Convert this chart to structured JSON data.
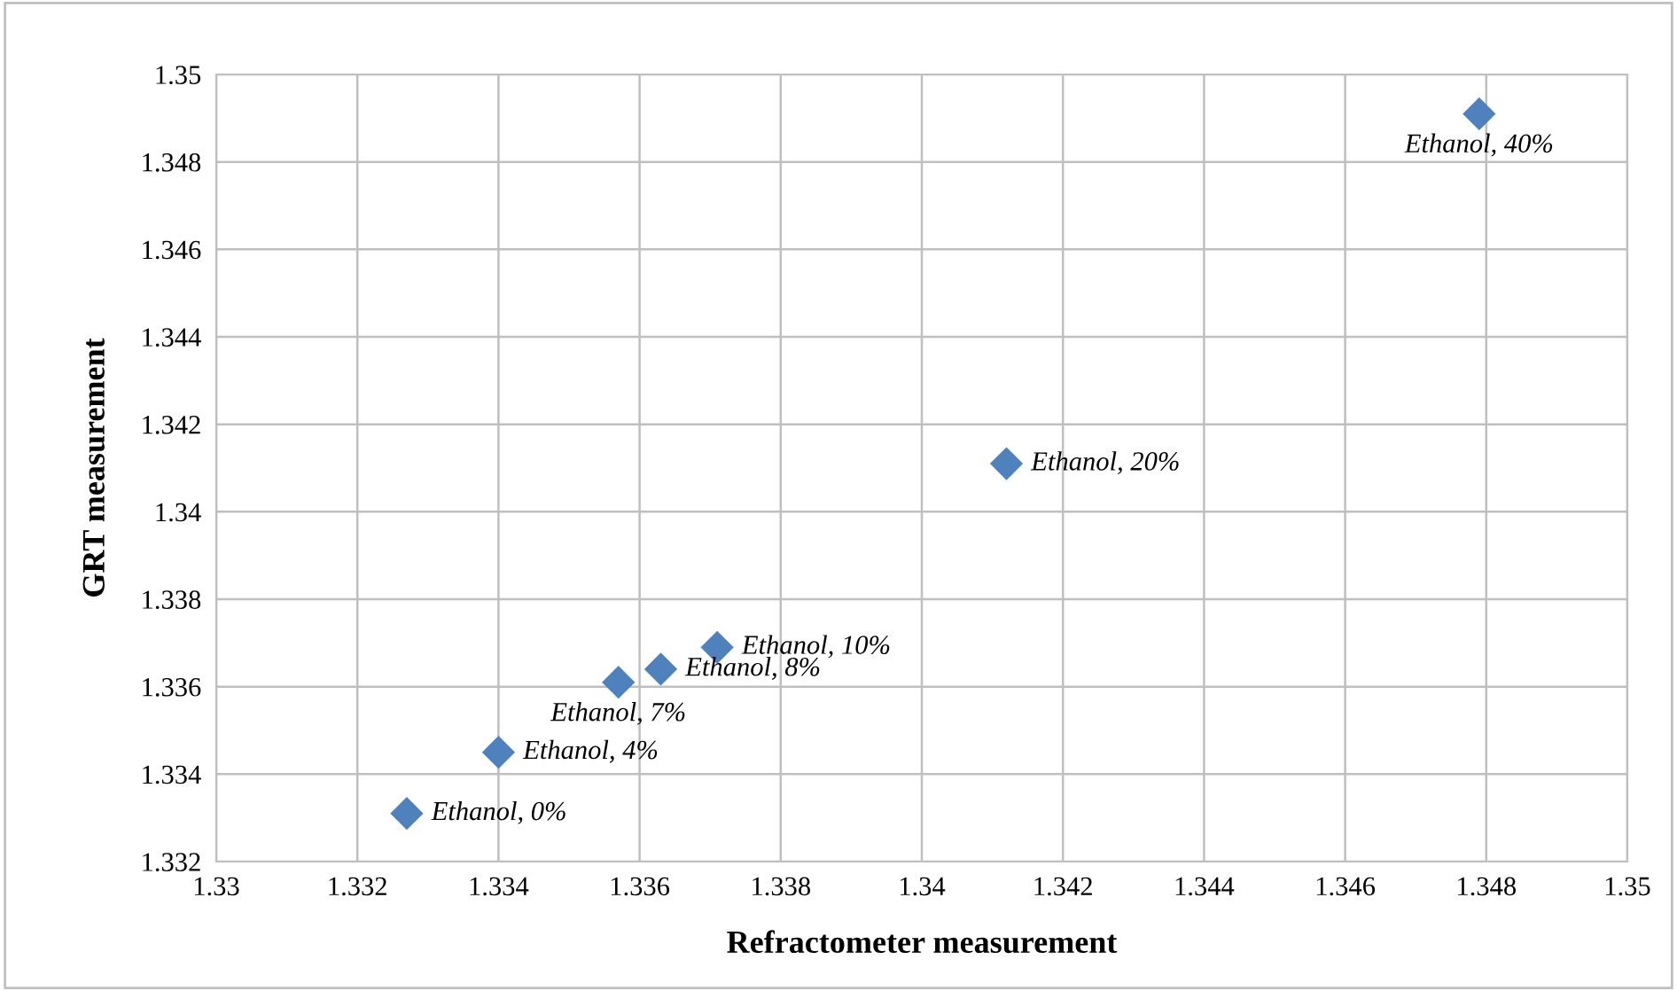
{
  "chart_data": {
    "type": "scatter",
    "xlabel": "Refractometer measurement",
    "ylabel": "GRT measurement",
    "x": [
      1.3327,
      1.334,
      1.3357,
      1.3363,
      1.3371,
      1.3412,
      1.3479
    ],
    "series": [
      {
        "color": "#4f81bd",
        "values": [
          1.3331,
          1.3345,
          1.3361,
          1.3364,
          1.3369,
          1.3411,
          1.3491
        ]
      }
    ],
    "marker": "diamond",
    "grid": true,
    "xlim": [
      1.33,
      1.35
    ],
    "xticks": [
      1.33,
      1.332,
      1.334,
      1.336,
      1.338,
      1.34,
      1.342,
      1.344,
      1.346,
      1.348,
      1.35
    ],
    "ylim": [
      1.332,
      1.35
    ],
    "yticks": [
      1.332,
      1.334,
      1.336,
      1.338,
      1.34,
      1.342,
      1.344,
      1.346,
      1.348,
      1.35
    ],
    "annotations": [
      {
        "text": "Ethanol, 0%",
        "x": 1.3327,
        "y": 1.3331
      },
      {
        "text": "Ethanol, 4%",
        "x": 1.334,
        "y": 1.3345
      },
      {
        "text": "Ethanol, 7%",
        "x": 1.3357,
        "y": 1.3361
      },
      {
        "text": "Ethanol, 8%",
        "x": 1.3363,
        "y": 1.3364
      },
      {
        "text": "Ethanol, 10%",
        "x": 1.3371,
        "y": 1.3369
      },
      {
        "text": "Ethanol, 20%",
        "x": 1.3412,
        "y": 1.3411
      },
      {
        "text": "Ethanol, 40%",
        "x": 1.3479,
        "y": 1.3491
      }
    ]
  }
}
